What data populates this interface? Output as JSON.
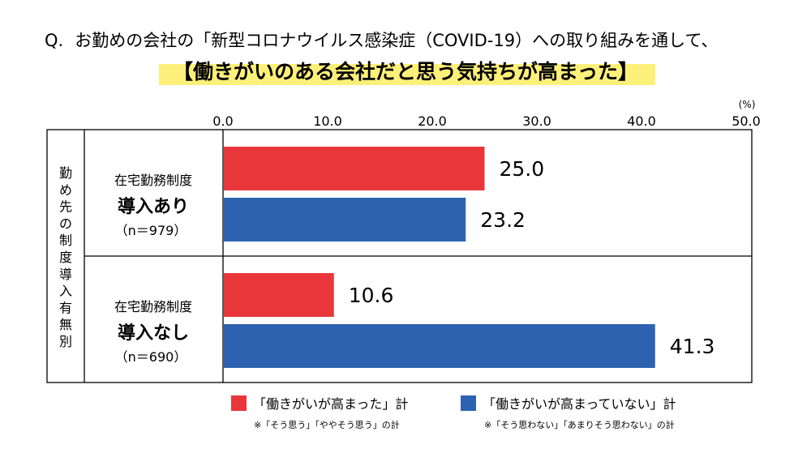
{
  "question": {
    "prefix": "Q.",
    "text": "お勤めの会社の「新型コロナウイルス感染症（COVID-19）への取り組みを通して、",
    "headline": "【働きがいのある会社だと思う気持ちが高まった】"
  },
  "chart_data": {
    "type": "bar",
    "orientation": "horizontal",
    "unit": "(%)",
    "xlim": [
      0,
      50
    ],
    "ticks": [
      "0.0",
      "10.0",
      "20.0",
      "30.0",
      "40.0",
      "50.0"
    ],
    "row_group_label": [
      "勤",
      "め",
      "先",
      "の",
      "制",
      "度",
      "導",
      "入",
      "有",
      "無",
      "別"
    ],
    "categories": [
      {
        "line1": "在宅勤務制度",
        "line2": "導入あり",
        "n": "（n＝979）"
      },
      {
        "line1": "在宅勤務制度",
        "line2": "導入なし",
        "n": "（n＝690）"
      }
    ],
    "series": [
      {
        "name": "「働きがいが高まった」計",
        "note": "※「そう思う」「ややそう思う」の計",
        "color": "#e8363a",
        "values": [
          25.0,
          10.6
        ],
        "labels": [
          "25.0",
          "10.6"
        ]
      },
      {
        "name": "「働きがいが高まっていない」計",
        "note": "※「そう思わない」「あまりそう思わない」の計",
        "color": "#2d62b1",
        "values": [
          23.2,
          41.3
        ],
        "labels": [
          "23.2",
          "41.3"
        ]
      }
    ]
  }
}
